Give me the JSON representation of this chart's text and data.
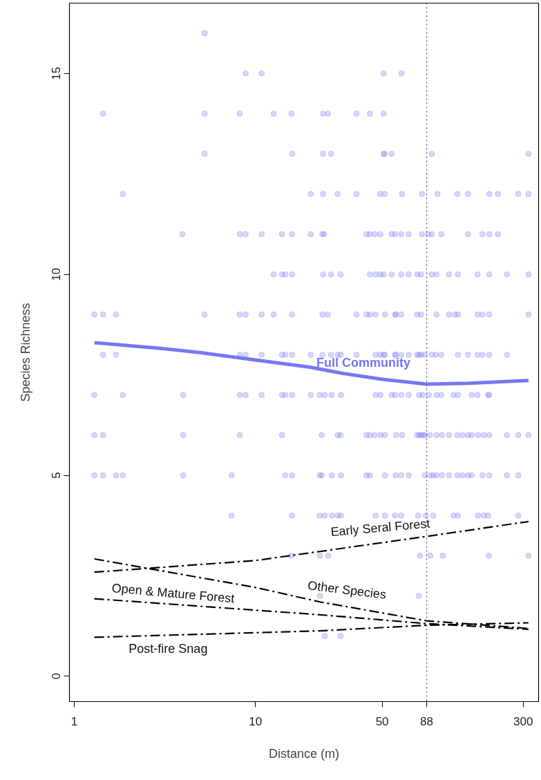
{
  "chart_data": {
    "type": "scatter",
    "xlabel": "Distance (m)",
    "ylabel": "Species Richness",
    "log": "x",
    "xlim": [
      0.94,
      365
    ],
    "ylim": [
      -0.63,
      16.75
    ],
    "xticks": [
      1,
      10,
      50,
      88,
      300
    ],
    "yticks": [
      0,
      5,
      10,
      15
    ],
    "ref_lines": [
      {
        "axis": "x",
        "value": 88,
        "color": "#555555",
        "line_style": "dotted"
      }
    ],
    "series": [
      {
        "marker": "circle",
        "color": "#7b7bf5",
        "x": [
          5.24,
          8.82,
          10.8,
          50.9,
          64.0,
          1.44,
          5.24,
          8.19,
          12.6,
          15.8,
          23.6,
          25.1,
          36.1,
          42.8,
          50.9,
          5.24,
          16.0,
          23.6,
          26.1,
          50.9,
          51.6,
          56.4,
          94.0,
          321,
          1.85,
          20.2,
          23.6,
          28.4,
          36.1,
          48.7,
          51.6,
          64.4,
          82.9,
          101,
          130,
          149,
          195,
          218,
          282,
          321,
          3.95,
          8.19,
          8.82,
          10.8,
          14.0,
          15.9,
          20.2,
          23.4,
          23.9,
          41.0,
          42.8,
          45.7,
          48.9,
          56.4,
          59.0,
          63.7,
          70.0,
          82.9,
          89.8,
          94.0,
          106,
          149,
          179,
          195,
          218,
          12.6,
          14.0,
          14.6,
          15.9,
          23.6,
          26.1,
          29.5,
          42.8,
          46.0,
          48.9,
          50.9,
          56.4,
          63.7,
          70.0,
          78.0,
          82.0,
          93.9,
          99.8,
          117,
          131,
          168,
          195,
          244,
          321,
          1.29,
          1.44,
          1.7,
          5.24,
          8.19,
          8.82,
          10.8,
          12.6,
          15.9,
          23.4,
          25.1,
          36.1,
          41.0,
          42.8,
          46.0,
          51.8,
          59.0,
          59.4,
          63.7,
          78.0,
          82.0,
          99.8,
          117,
          126,
          131,
          168,
          179,
          195,
          321,
          1.44,
          1.7,
          8.19,
          8.82,
          10.8,
          14.0,
          14.6,
          15.9,
          20.2,
          23.4,
          26.1,
          28.4,
          29.5,
          36.1,
          46.0,
          48.9,
          50.9,
          51.8,
          59.0,
          59.4,
          63.7,
          70.0,
          78.0,
          80.0,
          82.0,
          85.9,
          93.9,
          98.9,
          106,
          131,
          149,
          168,
          179,
          195,
          244,
          1.29,
          1.85,
          3.99,
          8.19,
          8.82,
          10.8,
          14.0,
          14.6,
          15.9,
          20.2,
          22.6,
          24.1,
          26.3,
          29.6,
          46.0,
          48.9,
          56.4,
          59.0,
          63.7,
          70.0,
          80.0,
          83.7,
          90.6,
          99.8,
          106,
          124,
          131,
          156,
          168,
          192,
          195,
          1.29,
          1.44,
          3.99,
          8.19,
          14.0,
          23.2,
          28.4,
          29.5,
          41.0,
          42.8,
          45.4,
          48.9,
          51.8,
          59.6,
          64.4,
          78.0,
          80.0,
          82.0,
          84.2,
          85.9,
          91.8,
          99.8,
          107,
          117,
          130,
          139,
          149,
          156,
          169,
          182,
          195,
          244,
          282,
          321,
          1.29,
          1.44,
          1.7,
          1.85,
          3.99,
          7.39,
          14.6,
          15.9,
          22.6,
          23.2,
          26.4,
          29.6,
          41.0,
          42.8,
          51.8,
          59.4,
          63.7,
          70.0,
          85.9,
          91.8,
          95.7,
          99.8,
          107,
          117,
          130,
          139,
          149,
          156,
          179,
          195,
          244,
          282,
          7.39,
          15.9,
          22.6,
          24.1,
          26.4,
          28.4,
          29.6,
          46.0,
          51.8,
          58.9,
          63.7,
          79.0,
          87.0,
          95.7,
          124,
          131,
          169,
          182,
          192,
          282,
          15.8,
          22.7,
          25.2,
          80.8,
          92.2,
          108,
          194,
          321,
          22.7,
          79.5,
          24.1,
          29.5
        ],
        "values": [
          16,
          15,
          15,
          15,
          15,
          14,
          14,
          14,
          14,
          14,
          14,
          14,
          14,
          14,
          14,
          13,
          13,
          13,
          13,
          13,
          13,
          13,
          13,
          13,
          12,
          12,
          12,
          12,
          12,
          12,
          12,
          12,
          12,
          12,
          12,
          12,
          12,
          12,
          12,
          12,
          11,
          11,
          11,
          11,
          11,
          11,
          11,
          11,
          11,
          11,
          11,
          11,
          11,
          11,
          11,
          11,
          11,
          11,
          11,
          11,
          11,
          11,
          11,
          11,
          11,
          10,
          10,
          10,
          10,
          10,
          10,
          10,
          10,
          10,
          10,
          10,
          10,
          10,
          10,
          10,
          10,
          10,
          10,
          10,
          10,
          10,
          10,
          10,
          10,
          9,
          9,
          9,
          9,
          9,
          9,
          9,
          9,
          9,
          9,
          9,
          9,
          9,
          9,
          9,
          9,
          9,
          9,
          9,
          9,
          9,
          9,
          9,
          9,
          9,
          9,
          9,
          9,
          9,
          8,
          8,
          8,
          8,
          8,
          8,
          8,
          8,
          8,
          8,
          8,
          8,
          8,
          8,
          8,
          8,
          8,
          8,
          8,
          8,
          8,
          8,
          8,
          8,
          8,
          8,
          8,
          8,
          8,
          8,
          8,
          8,
          8,
          8,
          8,
          7,
          7,
          7,
          7,
          7,
          7,
          7,
          7,
          7,
          7,
          7,
          7,
          7,
          7,
          7,
          7,
          7,
          7,
          7,
          7,
          7,
          7,
          7,
          7,
          7,
          7,
          7,
          7,
          7,
          7,
          7,
          6,
          6,
          6,
          6,
          6,
          6,
          6,
          6,
          6,
          6,
          6,
          6,
          6,
          6,
          6,
          6,
          6,
          6,
          6,
          6,
          6,
          6,
          6,
          6,
          6,
          6,
          6,
          6,
          6,
          6,
          6,
          6,
          6,
          6,
          5,
          5,
          5,
          5,
          5,
          5,
          5,
          5,
          5,
          5,
          5,
          5,
          5,
          5,
          5,
          5,
          5,
          5,
          5,
          5,
          5,
          5,
          5,
          5,
          5,
          5,
          5,
          5,
          5,
          5,
          5,
          5,
          4,
          4,
          4,
          4,
          4,
          4,
          4,
          4,
          4,
          4,
          4,
          4,
          4,
          4,
          4,
          4,
          4,
          4,
          4,
          4,
          3,
          3,
          3,
          3,
          3,
          3,
          3,
          3,
          2,
          2,
          1,
          1
        ]
      },
      {
        "type": "line",
        "name": "Full Community",
        "color": "#7676f5",
        "line_style": "solid",
        "x": [
          1.29,
          3,
          5,
          10,
          20,
          30,
          50,
          88,
          150,
          321
        ],
        "values": [
          8.3,
          8.16,
          8.05,
          7.87,
          7.69,
          7.54,
          7.39,
          7.27,
          7.29,
          7.36
        ]
      },
      {
        "type": "line",
        "name": "Early Seral Forest",
        "color": "#000000",
        "line_style": "dashed",
        "x": [
          1.29,
          10,
          88,
          321
        ],
        "values": [
          2.59,
          2.88,
          3.48,
          3.85
        ]
      },
      {
        "type": "line",
        "name": "Other Species",
        "color": "#000000",
        "line_style": "dashed",
        "x": [
          1.29,
          10,
          22.7,
          88,
          321
        ],
        "values": [
          2.92,
          2.21,
          1.85,
          1.38,
          1.19
        ]
      },
      {
        "type": "line",
        "name": "Open & Mature Forest",
        "color": "#000000",
        "line_style": "dashed",
        "x": [
          1.29,
          22.7,
          88,
          321
        ],
        "values": [
          1.93,
          1.53,
          1.31,
          1.17
        ]
      },
      {
        "type": "line",
        "name": "Post-fire Snag",
        "color": "#000000",
        "line_style": "dashed",
        "x": [
          1.29,
          22.7,
          88,
          321
        ],
        "values": [
          0.97,
          1.13,
          1.27,
          1.33
        ]
      }
    ]
  }
}
